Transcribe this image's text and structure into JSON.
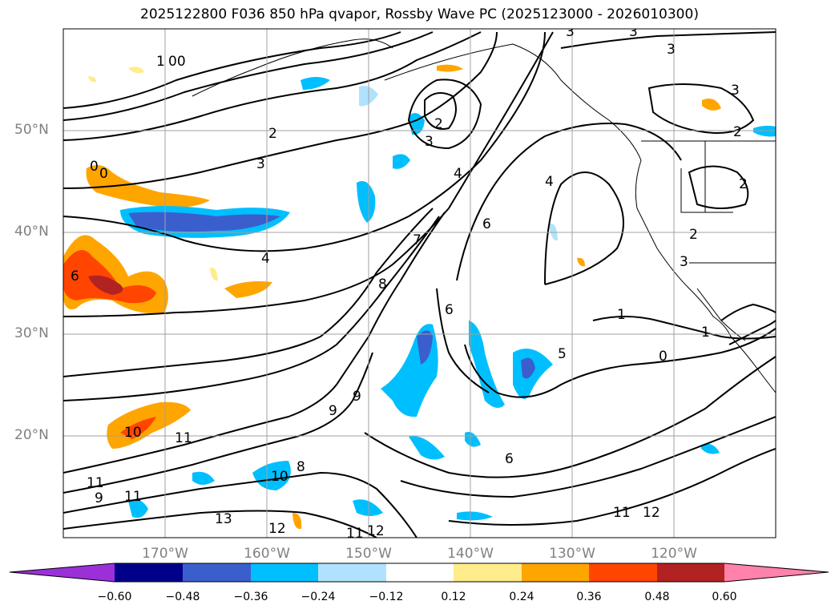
{
  "title": "2025122800 F036 850 hPa qvapor, Rossby Wave PC (2025123000 - 2026010300)",
  "lat_labels": [
    "50°N",
    "40°N",
    "30°N",
    "20°N"
  ],
  "lon_labels": [
    "170°W",
    "160°W",
    "150°W",
    "140°W",
    "130°W",
    "120°W"
  ],
  "contour_labels": [
    "1",
    "00",
    "2",
    "3",
    "0",
    "0",
    "4",
    "6",
    "7",
    "8",
    "9",
    "9",
    "10",
    "11",
    "11",
    "9",
    "11",
    "8",
    "10",
    "13",
    "12",
    "12",
    "11",
    "12",
    "11",
    "4",
    "3",
    "2",
    "3",
    "4",
    "6",
    "6",
    "5",
    "6",
    "1",
    "0",
    "1",
    "3",
    "2",
    "2",
    "3",
    "3",
    "3",
    "2"
  ],
  "colorbar": {
    "ticks": [
      "−0.60",
      "−0.48",
      "−0.36",
      "−0.24",
      "−0.12",
      "0.12",
      "0.24",
      "0.36",
      "0.48",
      "0.60"
    ],
    "colors": [
      "#9b30d9",
      "#00008b",
      "#3a5fcd",
      "#00bfff",
      "#b0e2ff",
      "#ffffff",
      "#ffec8b",
      "#ffa500",
      "#ff4500",
      "#b22222",
      "#ff82ab"
    ]
  }
}
